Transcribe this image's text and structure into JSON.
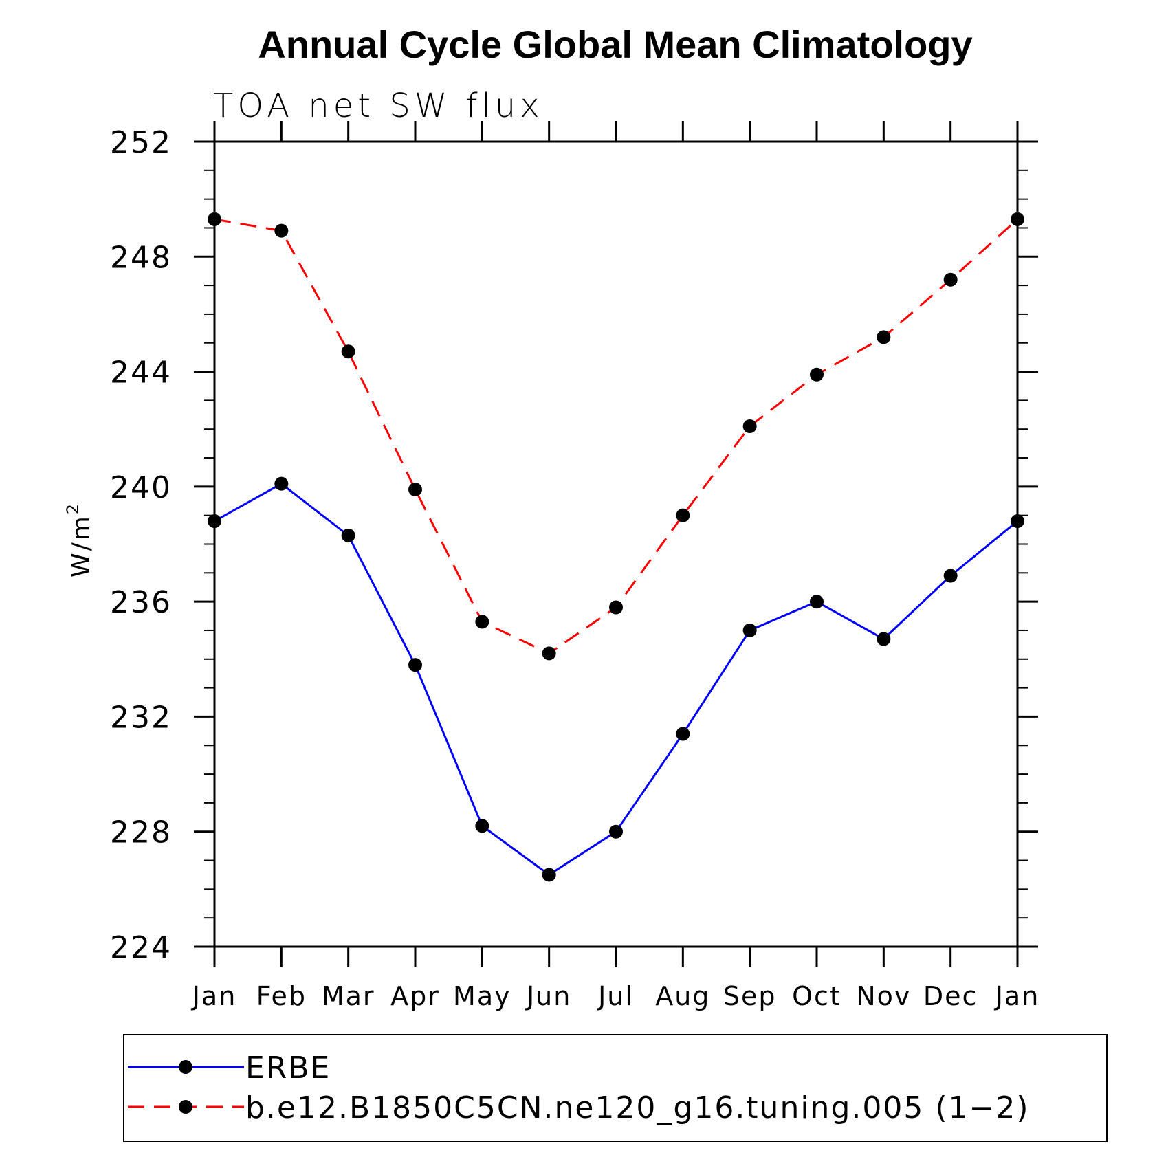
{
  "chart_data": {
    "type": "line",
    "title": "Annual Cycle Global Mean Climatology",
    "subtitle": "TOA net SW flux",
    "ylabel_base": "W/m",
    "ylabel_sup": "2",
    "ylim": [
      224,
      252
    ],
    "yticks": [
      224,
      228,
      232,
      236,
      240,
      244,
      248,
      252
    ],
    "ytick_labels": [
      "224",
      "228",
      "232",
      "236",
      "240",
      "244",
      "248",
      "252"
    ],
    "categories": [
      "Jan",
      "Feb",
      "Mar",
      "Apr",
      "May",
      "Jun",
      "Jul",
      "Aug",
      "Sep",
      "Oct",
      "Nov",
      "Dec",
      "Jan"
    ],
    "grid": false,
    "legend_position": "bottom",
    "series": [
      {
        "name": "ERBE",
        "color": "#0000ff",
        "dash": "solid",
        "marker": "filled-circle",
        "values": [
          238.8,
          240.1,
          238.3,
          233.8,
          228.2,
          226.5,
          228.0,
          231.4,
          235.0,
          236.0,
          234.7,
          236.9,
          238.8
        ]
      },
      {
        "name": "b.e12.B1850C5CN.ne120_g16.tuning.005 (1−2)",
        "color": "#ff0000",
        "dash": "dashed",
        "marker": "filled-circle",
        "values": [
          249.3,
          248.9,
          244.7,
          239.9,
          235.3,
          234.2,
          235.8,
          239.0,
          242.1,
          243.9,
          245.2,
          247.2,
          249.3
        ]
      }
    ]
  }
}
